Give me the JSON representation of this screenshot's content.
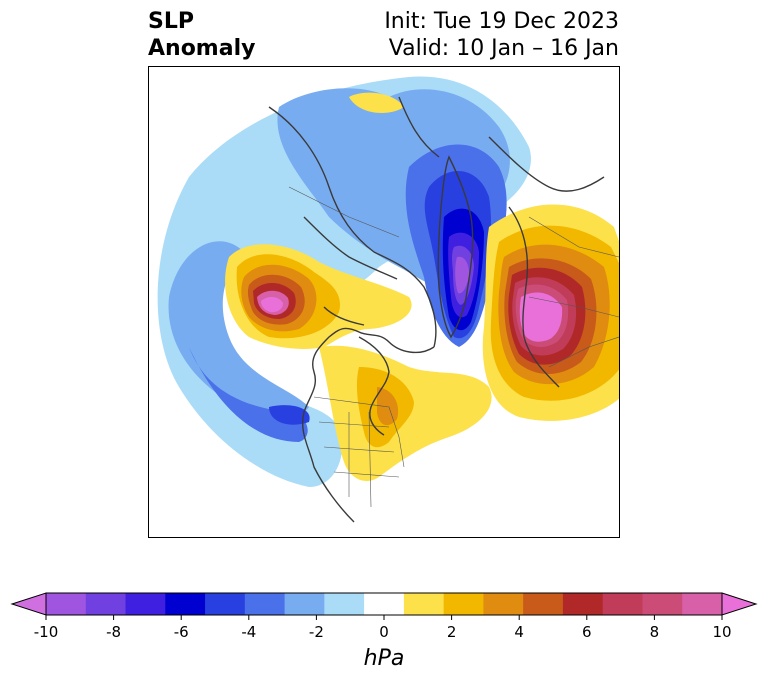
{
  "title": {
    "left_line1": "SLP",
    "left_line2": "Anomaly",
    "init": "Init: Tue 19 Dec 2023",
    "valid": "Valid: 10 Jan – 16 Jan"
  },
  "colorbar": {
    "ticks": [
      "-10",
      "-8",
      "-6",
      "-4",
      "-2",
      "0",
      "2",
      "4",
      "6",
      "8",
      "10"
    ],
    "unit": "hPa",
    "colors": [
      "#d070e0",
      "#a055e0",
      "#7040e0",
      "#4020e0",
      "#0000d0",
      "#2840e0",
      "#4a70ea",
      "#78acf0",
      "#aadcf8",
      "#ffffff",
      "#fde14a",
      "#f2b800",
      "#e08c10",
      "#c85a1a",
      "#b02828",
      "#c03c58",
      "#cc4c78",
      "#d860a8",
      "#e870d8"
    ]
  },
  "map": {
    "projection": "north-polar-stereographic",
    "anomalies": [
      {
        "region": "Arctic / Greenland",
        "sign": "negative",
        "peak_hPa": -10
      },
      {
        "region": "Alaska / Gulf of Alaska",
        "sign": "positive",
        "peak_hPa": 10
      },
      {
        "region": "Scandinavia / N. Europe",
        "sign": "positive",
        "peak_hPa": 10
      },
      {
        "region": "NE Pacific off W. Canada",
        "sign": "negative",
        "peak_hPa": -6
      }
    ]
  }
}
